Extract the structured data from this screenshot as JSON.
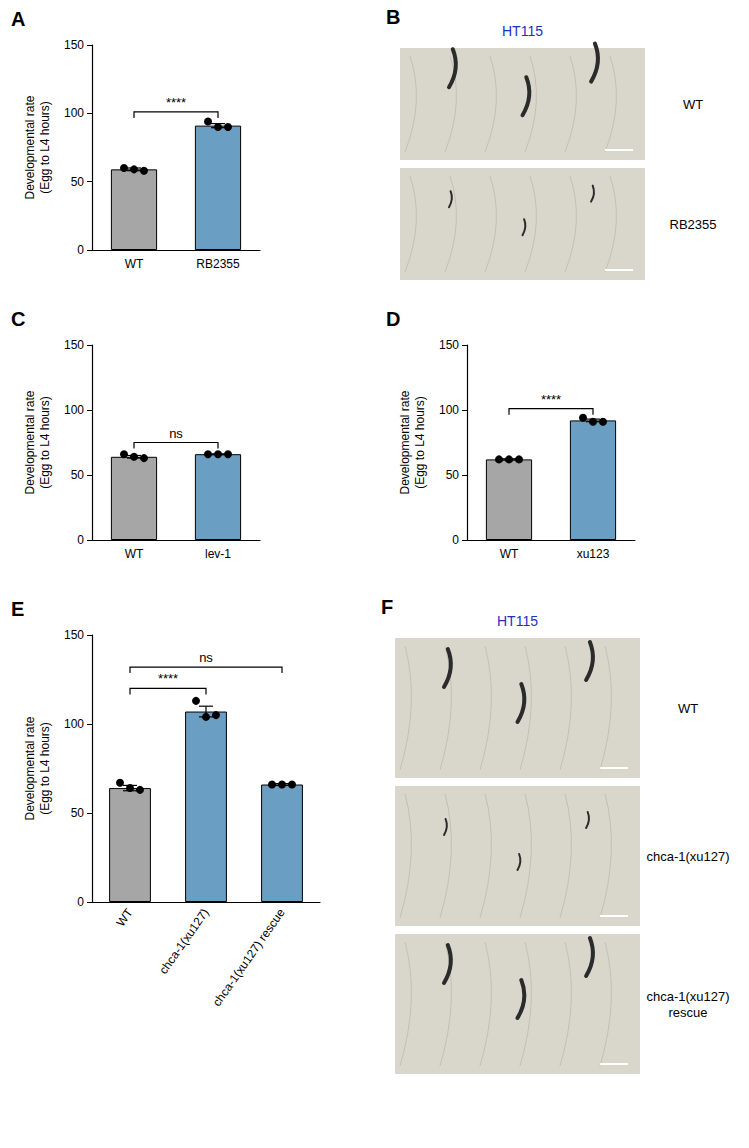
{
  "chart_data": [
    {
      "panel": "A",
      "type": "bar",
      "categories": [
        "WT",
        "RB2355"
      ],
      "values": [
        59,
        91
      ],
      "errors": [
        1,
        1.5
      ],
      "points": [
        [
          60,
          59,
          58
        ],
        [
          94,
          90,
          90
        ]
      ],
      "colors": [
        "#a6a6a6",
        "#6b9ec3"
      ],
      "ylim": [
        0,
        150
      ],
      "yticks": [
        0,
        50,
        100,
        150
      ],
      "y_label": "Developmental rate\n(Egg to L4 hours)",
      "annotations": [
        {
          "from": 0,
          "to": 1,
          "y": 101,
          "text": "****"
        }
      ]
    },
    {
      "panel": "C",
      "type": "bar",
      "categories": [
        "WT",
        "lev-1"
      ],
      "values": [
        64,
        66
      ],
      "errors": [
        1,
        0.3
      ],
      "points": [
        [
          66,
          64,
          63
        ],
        [
          66,
          66,
          66
        ]
      ],
      "colors": [
        "#a6a6a6",
        "#6b9ec3"
      ],
      "ylim": [
        0,
        150
      ],
      "yticks": [
        0,
        50,
        100,
        150
      ],
      "y_label": "Developmental rate\n(Egg to L4 hours)",
      "annotations": [
        {
          "from": 0,
          "to": 1,
          "y": 75,
          "text": "ns"
        }
      ]
    },
    {
      "panel": "D",
      "type": "bar",
      "categories": [
        "WT",
        "xu123"
      ],
      "values": [
        62,
        92
      ],
      "errors": [
        0.5,
        1
      ],
      "points": [
        [
          62,
          62,
          62
        ],
        [
          94,
          91,
          91
        ]
      ],
      "colors": [
        "#a6a6a6",
        "#6b9ec3"
      ],
      "ylim": [
        0,
        150
      ],
      "yticks": [
        0,
        50,
        100,
        150
      ],
      "y_label": "Developmental rate\n(Egg to L4 hours)",
      "annotations": [
        {
          "from": 0,
          "to": 1,
          "y": 101,
          "text": "****"
        }
      ]
    },
    {
      "panel": "E",
      "type": "bar",
      "categories": [
        "WT",
        "chca-1(xu127)",
        "chca-1(xu127) rescue"
      ],
      "values": [
        64,
        107,
        66
      ],
      "errors": [
        1.5,
        3,
        0.5
      ],
      "points": [
        [
          67,
          64,
          63
        ],
        [
          113,
          104,
          105
        ],
        [
          66,
          66,
          66
        ]
      ],
      "colors": [
        "#a6a6a6",
        "#6b9ec3",
        "#6b9ec3"
      ],
      "ylim": [
        0,
        150
      ],
      "yticks": [
        0,
        50,
        100,
        150
      ],
      "y_label": "Developmental rate\n(Egg to L4 hours)",
      "annotations": [
        {
          "from": 0,
          "to": 1,
          "y": 120,
          "text": "****"
        },
        {
          "from": 0,
          "to": 2,
          "y": 132,
          "text": "ns"
        }
      ]
    }
  ],
  "image_panels": [
    {
      "panel": "B",
      "title": "HT115",
      "labels": [
        "WT",
        "RB2355"
      ]
    },
    {
      "panel": "F",
      "title": "HT115",
      "labels": [
        "WT",
        "chca-1(xu127)",
        "chca-1(xu127) rescue"
      ]
    }
  ]
}
